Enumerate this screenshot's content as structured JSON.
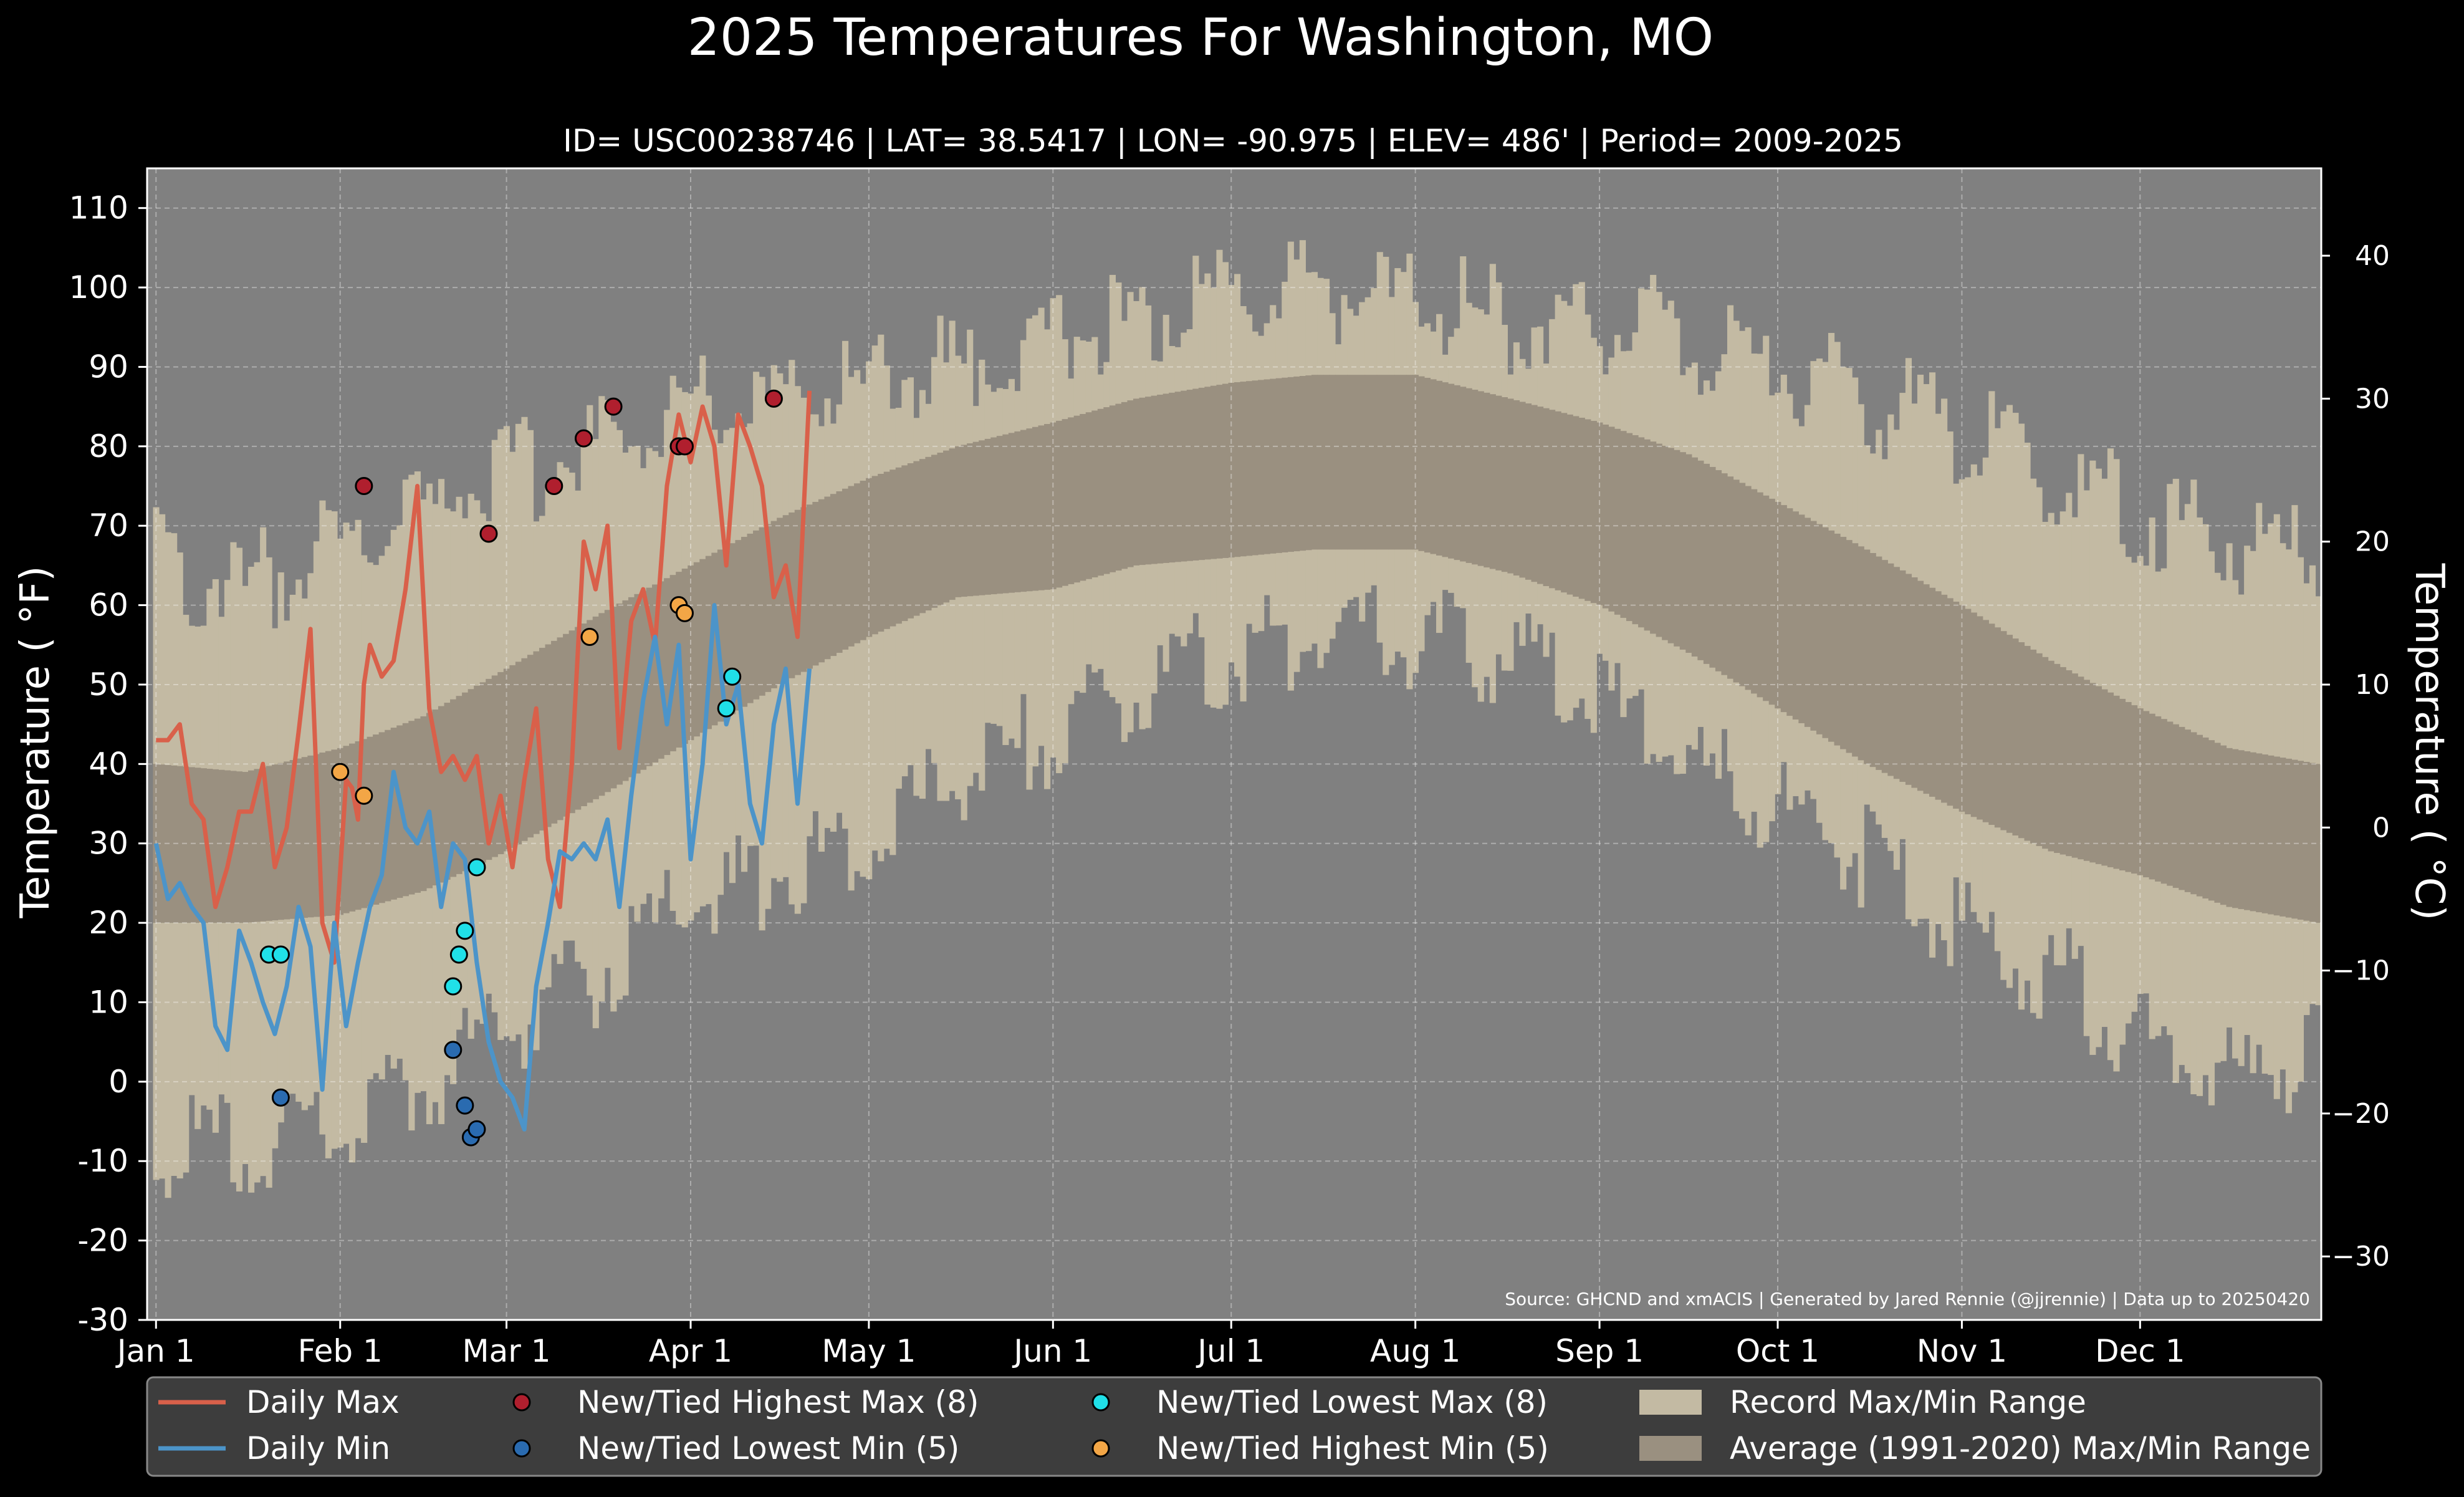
{
  "chart_data": {
    "type": "line",
    "title": "2025 Temperatures For Washington, MO",
    "subtitle": "ID= USC00238746 | LAT= 38.5417 | LON= -90.975 | ELEV= 486' | Period= 2009-2025",
    "ylabel": "Temperature ( °F)",
    "ylabel_right": "Temperature ( °C)",
    "source": "Source: GHCND and xmACIS | Generated by Jared Rennie (@jjrennie) | Data up to 20250420",
    "ylim": [
      -30,
      115
    ],
    "ylim_right_c": [
      -34.44,
      46.11
    ],
    "yticks": [
      -30,
      -20,
      -10,
      0,
      10,
      20,
      30,
      40,
      50,
      60,
      70,
      80,
      90,
      100,
      110
    ],
    "yticks_right": [
      -30,
      -20,
      -10,
      0,
      10,
      20,
      30,
      40
    ],
    "xlim_day": [
      -1.5,
      364.5
    ],
    "grid": true,
    "legend_position": "bottom",
    "month_ticks": [
      {
        "label": "Jan 1",
        "day": 0
      },
      {
        "label": "Feb 1",
        "day": 31
      },
      {
        "label": "Mar 1",
        "day": 59
      },
      {
        "label": "Apr 1",
        "day": 90
      },
      {
        "label": "May 1",
        "day": 120
      },
      {
        "label": "Jun 1",
        "day": 151
      },
      {
        "label": "Jul 1",
        "day": 181
      },
      {
        "label": "Aug 1",
        "day": 212
      },
      {
        "label": "Sep 1",
        "day": 243
      },
      {
        "label": "Oct 1",
        "day": 273
      },
      {
        "label": "Nov 1",
        "day": 304
      },
      {
        "label": "Dec 1",
        "day": 334
      }
    ],
    "record_max_anchors": [
      [
        0,
        66
      ],
      [
        15,
        62
      ],
      [
        31,
        68
      ],
      [
        45,
        72
      ],
      [
        59,
        76
      ],
      [
        75,
        80
      ],
      [
        90,
        86
      ],
      [
        105,
        86
      ],
      [
        120,
        88
      ],
      [
        135,
        90
      ],
      [
        151,
        94
      ],
      [
        165,
        96
      ],
      [
        181,
        98
      ],
      [
        195,
        100
      ],
      [
        212,
        98
      ],
      [
        228,
        96
      ],
      [
        243,
        96
      ],
      [
        258,
        94
      ],
      [
        273,
        90
      ],
      [
        288,
        86
      ],
      [
        304,
        82
      ],
      [
        319,
        76
      ],
      [
        334,
        72
      ],
      [
        349,
        68
      ],
      [
        364,
        66
      ]
    ],
    "record_min_anchors": [
      [
        0,
        -8
      ],
      [
        15,
        -8
      ],
      [
        31,
        -6
      ],
      [
        45,
        0
      ],
      [
        59,
        6
      ],
      [
        75,
        14
      ],
      [
        90,
        22
      ],
      [
        105,
        26
      ],
      [
        120,
        32
      ],
      [
        135,
        38
      ],
      [
        151,
        44
      ],
      [
        165,
        50
      ],
      [
        181,
        54
      ],
      [
        195,
        56
      ],
      [
        212,
        56
      ],
      [
        228,
        54
      ],
      [
        243,
        48
      ],
      [
        258,
        40
      ],
      [
        273,
        34
      ],
      [
        288,
        28
      ],
      [
        304,
        20
      ],
      [
        319,
        14
      ],
      [
        334,
        6
      ],
      [
        349,
        0
      ],
      [
        364,
        4
      ]
    ],
    "avg_max_anchors": [
      [
        0,
        40
      ],
      [
        15,
        39
      ],
      [
        31,
        42
      ],
      [
        45,
        46
      ],
      [
        59,
        52
      ],
      [
        75,
        59
      ],
      [
        90,
        65
      ],
      [
        105,
        71
      ],
      [
        120,
        76
      ],
      [
        135,
        80
      ],
      [
        151,
        83
      ],
      [
        165,
        86
      ],
      [
        181,
        88
      ],
      [
        195,
        89
      ],
      [
        212,
        89
      ],
      [
        228,
        86
      ],
      [
        243,
        83
      ],
      [
        258,
        79
      ],
      [
        273,
        73
      ],
      [
        288,
        67
      ],
      [
        304,
        60
      ],
      [
        319,
        53
      ],
      [
        334,
        47
      ],
      [
        349,
        42
      ],
      [
        364,
        40
      ]
    ],
    "avg_min_anchors": [
      [
        0,
        20
      ],
      [
        15,
        20
      ],
      [
        31,
        21
      ],
      [
        45,
        24
      ],
      [
        59,
        29
      ],
      [
        75,
        36
      ],
      [
        90,
        43
      ],
      [
        105,
        50
      ],
      [
        120,
        56
      ],
      [
        135,
        61
      ],
      [
        151,
        62
      ],
      [
        165,
        65
      ],
      [
        181,
        66
      ],
      [
        195,
        67
      ],
      [
        212,
        67
      ],
      [
        228,
        64
      ],
      [
        243,
        60
      ],
      [
        258,
        54
      ],
      [
        273,
        47
      ],
      [
        288,
        40
      ],
      [
        304,
        34
      ],
      [
        319,
        29
      ],
      [
        334,
        26
      ],
      [
        349,
        22
      ],
      [
        364,
        20
      ]
    ],
    "series": [
      {
        "name": "Daily Max",
        "color": "#d9604a",
        "x": [
          0,
          2,
          4,
          6,
          8,
          10,
          12,
          14,
          16,
          18,
          20,
          22,
          24,
          26,
          28,
          30,
          32,
          33,
          34,
          35,
          36,
          38,
          40,
          42,
          44,
          46,
          48,
          50,
          52,
          54,
          56,
          58,
          60,
          62,
          64,
          66,
          68,
          70,
          72,
          74,
          76,
          78,
          80,
          82,
          84,
          86,
          88,
          90,
          92,
          94,
          96,
          98,
          100,
          102,
          104,
          106,
          108,
          110
        ],
        "y": [
          43,
          43,
          45,
          35,
          33,
          22,
          27,
          34,
          34,
          40,
          27,
          32,
          44,
          57,
          20,
          15,
          38,
          37,
          33,
          50,
          55,
          51,
          53,
          62,
          75,
          47,
          39,
          41,
          38,
          41,
          30,
          36,
          27,
          38,
          47,
          28,
          22,
          40,
          68,
          62,
          70,
          42,
          58,
          62,
          55,
          75,
          84,
          78,
          85,
          80,
          65,
          84,
          80,
          75,
          61,
          65,
          56,
          87
        ]
      },
      {
        "name": "Daily Min",
        "color": "#4c94c9",
        "x": [
          0,
          2,
          4,
          6,
          8,
          10,
          12,
          14,
          16,
          18,
          20,
          22,
          24,
          26,
          28,
          30,
          32,
          34,
          36,
          38,
          40,
          42,
          44,
          46,
          48,
          50,
          52,
          54,
          56,
          58,
          60,
          62,
          64,
          66,
          68,
          70,
          72,
          74,
          76,
          78,
          80,
          82,
          84,
          86,
          88,
          90,
          92,
          94,
          96,
          98,
          100,
          102,
          104,
          106,
          108,
          110
        ],
        "y": [
          30,
          23,
          25,
          22,
          20,
          7,
          4,
          19,
          15,
          10,
          6,
          12,
          22,
          17,
          -1,
          20,
          7,
          15,
          22,
          26,
          39,
          32,
          30,
          34,
          22,
          30,
          28,
          15,
          5,
          0,
          -2,
          -6,
          12,
          20,
          29,
          28,
          30,
          28,
          33,
          22,
          36,
          48,
          56,
          45,
          55,
          28,
          40,
          60,
          45,
          50,
          35,
          30,
          45,
          52,
          35,
          52
        ]
      }
    ],
    "markers": {
      "highest_max": {
        "label": "New/Tied Highest Max (8)",
        "color": "#b01f2e",
        "points": [
          [
            35,
            75
          ],
          [
            56,
            69
          ],
          [
            67,
            75
          ],
          [
            72,
            81
          ],
          [
            77,
            85
          ],
          [
            88,
            80
          ],
          [
            89,
            80
          ],
          [
            104,
            86
          ]
        ]
      },
      "lowest_min": {
        "label": "New/Tied Lowest Min (5)",
        "color": "#2a6bb0",
        "points": [
          [
            21,
            -2
          ],
          [
            50,
            4
          ],
          [
            52,
            -3
          ],
          [
            53,
            -7
          ],
          [
            54,
            -6
          ]
        ]
      },
      "lowest_max": {
        "label": "New/Tied Lowest Max (8)",
        "color": "#20e0e8",
        "points": [
          [
            19,
            16
          ],
          [
            21,
            16
          ],
          [
            50,
            12
          ],
          [
            51,
            16
          ],
          [
            52,
            19
          ],
          [
            54,
            27
          ],
          [
            96,
            47
          ],
          [
            97,
            51
          ]
        ]
      },
      "highest_min": {
        "label": "New/Tied Highest Min (5)",
        "color": "#f3a646",
        "points": [
          [
            31,
            39
          ],
          [
            35,
            36
          ],
          [
            73,
            56
          ],
          [
            88,
            60
          ],
          [
            89,
            59
          ]
        ]
      }
    },
    "legend": [
      {
        "label": "Daily Max",
        "kind": "line",
        "color": "#d9604a"
      },
      {
        "label": "Daily Min",
        "kind": "line",
        "color": "#4c94c9"
      },
      {
        "label": "New/Tied Highest Max (8)",
        "kind": "dot",
        "color": "#b01f2e"
      },
      {
        "label": "New/Tied Lowest Min (5)",
        "kind": "dot",
        "color": "#2a6bb0"
      },
      {
        "label": "New/Tied Lowest Max (8)",
        "kind": "dot",
        "color": "#20e0e8"
      },
      {
        "label": "New/Tied Highest Min (5)",
        "kind": "dot",
        "color": "#f3a646"
      },
      {
        "label": "Record Max/Min Range",
        "kind": "patch",
        "color": "#c3baa3"
      },
      {
        "label": "Average (1991-2020) Max/Min Range",
        "kind": "patch",
        "color": "#9a9080"
      }
    ],
    "colors": {
      "background": "#000000",
      "plot_background": "#808080",
      "record_range": "#c3baa3",
      "average_range": "#9a9080",
      "legend_background": "#3d3d3d"
    }
  }
}
